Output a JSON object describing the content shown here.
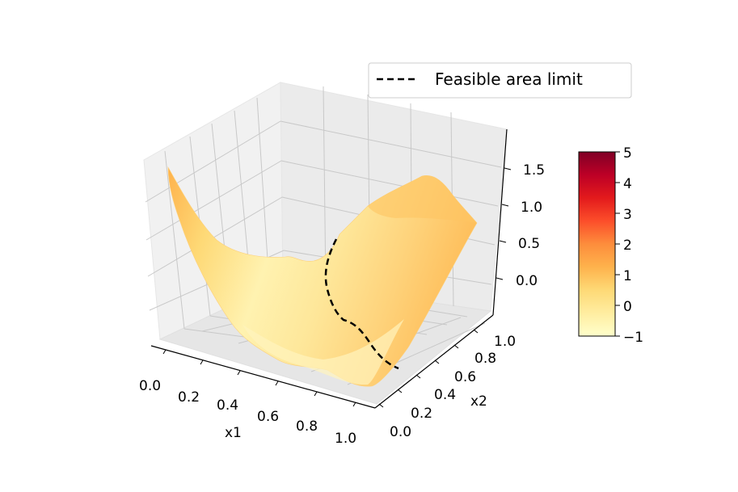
{
  "chart_data": {
    "type": "surface3d",
    "title": "",
    "xlabel": "x1",
    "ylabel": "x2",
    "zlabel": "",
    "xlim": [
      0.0,
      1.0
    ],
    "ylim": [
      0.0,
      1.0
    ],
    "zlim": [
      -0.4,
      1.9
    ],
    "x_ticks": [
      "0.0",
      "0.2",
      "0.4",
      "0.6",
      "0.8",
      "1.0"
    ],
    "y_ticks": [
      "0.0",
      "0.2",
      "0.4",
      "0.6",
      "0.8",
      "1.0"
    ],
    "z_ticks": [
      "0.0",
      "0.5",
      "1.0",
      "1.5"
    ],
    "grid": true,
    "legend": {
      "placement": "top-right",
      "entries": [
        {
          "label": "Feasible area limit",
          "style": "dashed",
          "color": "#000000"
        }
      ]
    },
    "colorbar": {
      "colormap": "YlOrRd",
      "range": [
        -1,
        5
      ],
      "ticks": [
        "−1",
        "0",
        "1",
        "2",
        "3",
        "4",
        "5"
      ]
    },
    "surface_corners_z": {
      "x0_y0": 0.0,
      "x1_y0": -0.2,
      "x0_y1": 1.7,
      "x1_y1": 1.2
    },
    "surface_peak": {
      "x1": 0.85,
      "x2": 1.0,
      "z": 1.5
    },
    "feasible_limit_line": [
      {
        "x1": 0.97,
        "x2": 0.25,
        "z": 0.15
      },
      {
        "x1": 0.85,
        "x2": 0.3,
        "z": 0.15
      },
      {
        "x1": 0.72,
        "x2": 0.33,
        "z": 0.2
      },
      {
        "x1": 0.58,
        "x2": 0.4,
        "z": 0.3
      },
      {
        "x1": 0.5,
        "x2": 0.52,
        "z": 0.35
      },
      {
        "x1": 0.46,
        "x2": 0.66,
        "z": 0.45
      },
      {
        "x1": 0.44,
        "x2": 0.8,
        "z": 0.6
      }
    ],
    "colors": {
      "surface_low": "#ffffcc",
      "surface_high": "#fd8d3c",
      "limit_line": "#000000"
    }
  }
}
